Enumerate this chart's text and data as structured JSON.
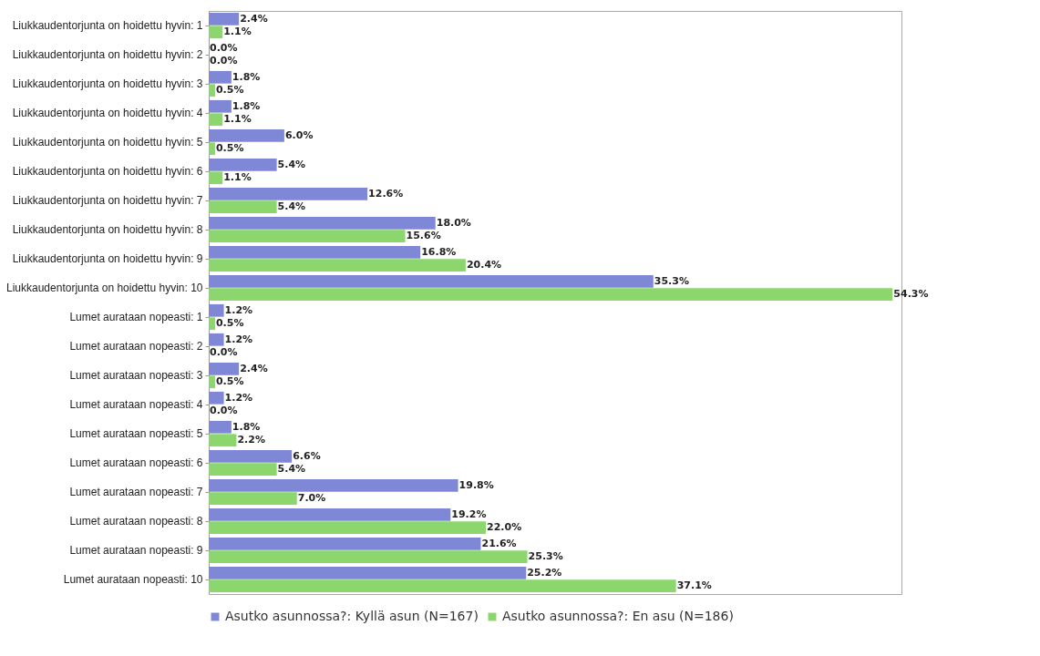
{
  "chart_data": {
    "type": "bar",
    "orientation": "horizontal",
    "legend": "bottom",
    "categories": [
      "Liukkaudentorjunta on hoidettu hyvin: 1",
      "Liukkaudentorjunta on hoidettu hyvin: 2",
      "Liukkaudentorjunta on hoidettu hyvin: 3",
      "Liukkaudentorjunta on hoidettu hyvin: 4",
      "Liukkaudentorjunta on hoidettu hyvin: 5",
      "Liukkaudentorjunta on hoidettu hyvin: 6",
      "Liukkaudentorjunta on hoidettu hyvin: 7",
      "Liukkaudentorjunta on hoidettu hyvin: 8",
      "Liukkaudentorjunta on hoidettu hyvin: 9",
      "Liukkaudentorjunta on hoidettu hyvin: 10",
      "Lumet aurataan nopeasti: 1",
      "Lumet aurataan nopeasti: 2",
      "Lumet aurataan nopeasti: 3",
      "Lumet aurataan nopeasti: 4",
      "Lumet aurataan nopeasti: 5",
      "Lumet aurataan nopeasti: 6",
      "Lumet aurataan nopeasti: 7",
      "Lumet aurataan nopeasti: 8",
      "Lumet aurataan nopeasti: 9",
      "Lumet aurataan nopeasti: 10"
    ],
    "series": [
      {
        "name": "Asutko asunnossa?: Kyllä asun (N=167)",
        "color": "#7f87d7",
        "values": [
          2.4,
          0.0,
          1.8,
          1.8,
          6.0,
          5.4,
          12.6,
          18.0,
          16.8,
          35.3,
          1.2,
          1.2,
          2.4,
          1.2,
          1.8,
          6.6,
          19.8,
          19.2,
          21.6,
          25.2
        ],
        "value_labels": [
          "2.4%",
          "0.0%",
          "1.8%",
          "1.8%",
          "6.0%",
          "5.4%",
          "12.6%",
          "18.0%",
          "16.8%",
          "35.3%",
          "1.2%",
          "1.2%",
          "2.4%",
          "1.2%",
          "1.8%",
          "6.6%",
          "19.8%",
          "19.2%",
          "21.6%",
          "25.2%"
        ]
      },
      {
        "name": "Asutko asunnossa?: En asu (N=186)",
        "color": "#8cd66e",
        "values": [
          1.1,
          0.0,
          0.5,
          1.1,
          0.5,
          1.1,
          5.4,
          15.6,
          20.4,
          54.3,
          0.5,
          0.0,
          0.5,
          0.0,
          2.2,
          5.4,
          7.0,
          22.0,
          25.3,
          37.1
        ],
        "value_labels": [
          "1.1%",
          "0.0%",
          "0.5%",
          "1.1%",
          "0.5%",
          "1.1%",
          "5.4%",
          "15.6%",
          "20.4%",
          "54.3%",
          "0.5%",
          "0.0%",
          "0.5%",
          "0.0%",
          "2.2%",
          "5.4%",
          "7.0%",
          "22.0%",
          "25.3%",
          "37.1%"
        ]
      }
    ]
  }
}
